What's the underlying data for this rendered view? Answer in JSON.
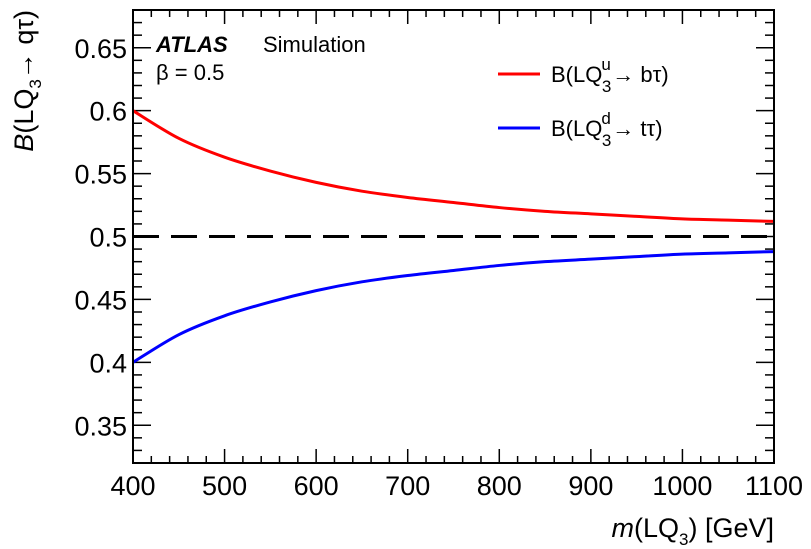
{
  "chart_data": {
    "type": "line",
    "experiment": "ATLAS",
    "experiment_suffix": "Simulation",
    "annotation": "β = 0.5",
    "xlabel": {
      "italic": "m",
      "pre": "(LQ",
      "sub": "3",
      "post": ") [GeV]"
    },
    "ylabel": {
      "italic": "B",
      "pre": "(LQ",
      "sub": "3",
      "post": "→ qτ)"
    },
    "xlim": [
      400,
      1100
    ],
    "ylim": [
      0.32,
      0.68
    ],
    "xticks": [
      400,
      500,
      600,
      700,
      800,
      900,
      1000,
      1100
    ],
    "xtick_labels": [
      "400",
      "500",
      "600",
      "700",
      "800",
      "900",
      "1000",
      "1100"
    ],
    "yticks": [
      0.35,
      0.4,
      0.45,
      0.5,
      0.55,
      0.6,
      0.65
    ],
    "ytick_labels": [
      "0.35",
      "0.4",
      "0.45",
      "0.5",
      "0.55",
      "0.6",
      "0.65"
    ],
    "reference_line": {
      "y": 0.5,
      "style": "dashed",
      "color": "#000000"
    },
    "x": [
      400,
      450,
      500,
      550,
      600,
      650,
      700,
      750,
      800,
      850,
      900,
      950,
      1000,
      1050,
      1100
    ],
    "series": [
      {
        "legend": {
          "pre": "B(LQ",
          "sup": "u",
          "sub": "3",
          "post": "→ bτ)"
        },
        "color": "#ff0000",
        "values": [
          0.6,
          0.578,
          0.563,
          0.552,
          0.543,
          0.536,
          0.531,
          0.527,
          0.523,
          0.52,
          0.518,
          0.516,
          0.514,
          0.513,
          0.512
        ]
      },
      {
        "legend": {
          "pre": "B(LQ",
          "sup": "d",
          "sub": "3",
          "post": "→ tτ)"
        },
        "color": "#0000ff",
        "values": [
          0.4,
          0.422,
          0.437,
          0.448,
          0.457,
          0.464,
          0.469,
          0.473,
          0.477,
          0.48,
          0.482,
          0.484,
          0.486,
          0.487,
          0.488
        ]
      }
    ]
  }
}
